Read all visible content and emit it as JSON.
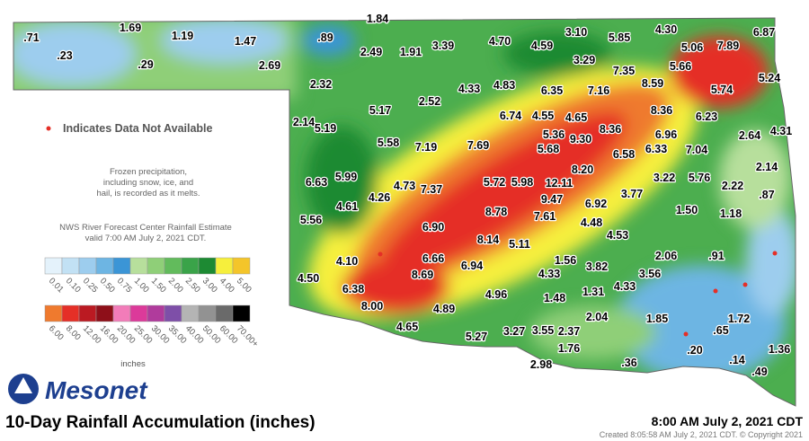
{
  "stations": [
    ".71",
    ".23",
    "1.69",
    ".29",
    "1.19",
    "1.47",
    "2.69",
    ".89",
    "1.84",
    "2.49",
    "1.91",
    "3.39",
    "4.70",
    "4.59",
    "3.10",
    "5.85",
    "4.30",
    "5.06",
    "7.89",
    "6.87",
    "3.29",
    "7.35",
    "5.66",
    "5.24",
    "2.32",
    "4.33",
    "4.83",
    "6.35",
    "7.16",
    "8.59",
    "5.74",
    "2.52",
    "5.17",
    "2.14",
    "6.74",
    "4.55",
    "4.65",
    "8.36",
    "6.23",
    "5.19",
    "5.36",
    "9.30",
    "8.36",
    "6.96",
    "2.64",
    "4.31",
    "5.58",
    "7.19",
    "7.69",
    "5.68",
    "6.58",
    "6.33",
    "7.04",
    "8.20",
    "5.99",
    "6.63",
    "2.14",
    "4.26",
    "4.73",
    "7.37",
    "5.72",
    "5.98",
    "12.11",
    "3.22",
    "5.76",
    "2.22",
    "4.61",
    "9.47",
    "6.92",
    "3.77",
    ".87",
    "5.56",
    "6.90",
    "8.78",
    "7.61",
    "1.50",
    "1.18",
    "8.14",
    "5.11",
    "4.48",
    "4.53",
    "4.10",
    "6.66",
    "6.94",
    "8.69",
    "1.56",
    "3.82",
    "2.06",
    ".91",
    "4.50",
    "6.38",
    "4.33",
    "3.56",
    "4.96",
    "4.33",
    "1.31",
    "1.48",
    "8.00",
    "4.89",
    "2.04",
    "1.72",
    "1.85",
    ".65",
    "4.65",
    "5.27",
    "3.27",
    "3.55",
    "2.37",
    "1.76",
    ".20",
    "1.36",
    ".14",
    ".49",
    "2.98",
    ".36"
  ],
  "notes": {
    "missing": "Indicates Data Not Available",
    "frozen": [
      "Frozen precipitation,",
      "including snow, ice, and",
      "hail, is recorded as it melts."
    ],
    "source": [
      "NWS River Forecast Center Rainfall Estimate",
      "valid 7:00 AM July 2, 2021 CDT."
    ]
  },
  "legend": {
    "row1": [
      "0.01",
      "0.10",
      "0.25",
      "0.50",
      "0.75",
      "1.00",
      "1.50",
      "2.00",
      "2.50",
      "3.00",
      "4.00",
      "5.00"
    ],
    "colors1": [
      "#e4f2fb",
      "#c2e1f4",
      "#9dcdee",
      "#6db5e3",
      "#3b95d6",
      "#b7df9c",
      "#8fcf78",
      "#62bb5c",
      "#3aa349",
      "#1d8a33",
      "#f6ef3c",
      "#f4c52a"
    ],
    "row2": [
      "6.00",
      "8.00",
      "12.00",
      "16.00",
      "20.00",
      "25.00",
      "30.00",
      "35.00",
      "40.00",
      "50.00",
      "60.00",
      "70.00+"
    ],
    "colors2": [
      "#ef7a2e",
      "#e52f27",
      "#bb1a22",
      "#8e0f19",
      "#f27cb9",
      "#dc3a9a",
      "#b03b9c",
      "#7e4fa8",
      "#b4b4b4",
      "#929292",
      "#6a6a6a",
      "#000000"
    ],
    "unit": "inches"
  },
  "footer": {
    "logo": "Mesonet",
    "title": "10-Day Rainfall Accumulation (inches)",
    "time": "8:00 AM July 2, 2021 CDT",
    "created": "Created 8:05:58 AM July 2, 2021 CDT. © Copyright 2021"
  }
}
